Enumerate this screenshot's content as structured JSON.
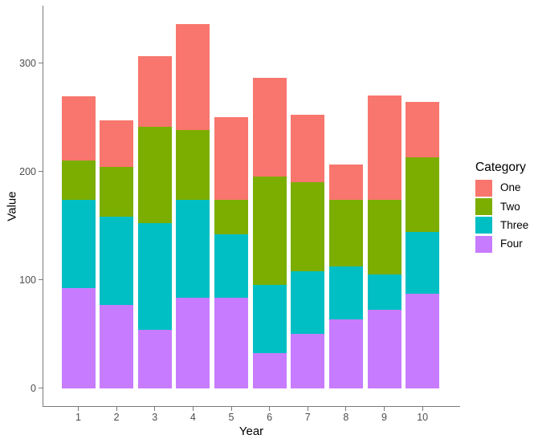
{
  "chart_data": {
    "type": "bar",
    "stacked": true,
    "title": "",
    "xlabel": "Year",
    "ylabel": "Value",
    "categories": [
      "1",
      "2",
      "3",
      "4",
      "5",
      "6",
      "7",
      "8",
      "9",
      "10"
    ],
    "series": [
      {
        "name": "One",
        "color": "#F8766D",
        "values": [
          59,
          43,
          65,
          98,
          76,
          91,
          62,
          32,
          96,
          51
        ]
      },
      {
        "name": "Two",
        "color": "#7CAE00",
        "values": [
          36,
          46,
          89,
          64,
          32,
          100,
          82,
          62,
          69,
          69
        ]
      },
      {
        "name": "Three",
        "color": "#00BFC4",
        "values": [
          82,
          81,
          98,
          91,
          59,
          63,
          58,
          49,
          33,
          57
        ]
      },
      {
        "name": "Four",
        "color": "#C77CFF",
        "values": [
          92,
          77,
          54,
          83,
          83,
          32,
          50,
          63,
          72,
          87
        ]
      }
    ],
    "totals": [
      269,
      247,
      306,
      336,
      250,
      286,
      252,
      206,
      270,
      264
    ],
    "stack_order_bottom_to_top": [
      "Four",
      "Three",
      "Two",
      "One"
    ],
    "y_ticks": [
      0,
      100,
      200,
      300
    ],
    "y_tick_labels": [
      "0",
      "100",
      "200",
      "300"
    ],
    "ylim": [
      0,
      353
    ],
    "grid": false,
    "legend": {
      "title": "Category",
      "position": "right",
      "entries": [
        "One",
        "Two",
        "Three",
        "Four"
      ]
    },
    "colors": {
      "axis_line": "#7a7a7a",
      "tick_label": "#4d4d4d",
      "axis_title": "#000000",
      "background": "#ffffff"
    }
  }
}
